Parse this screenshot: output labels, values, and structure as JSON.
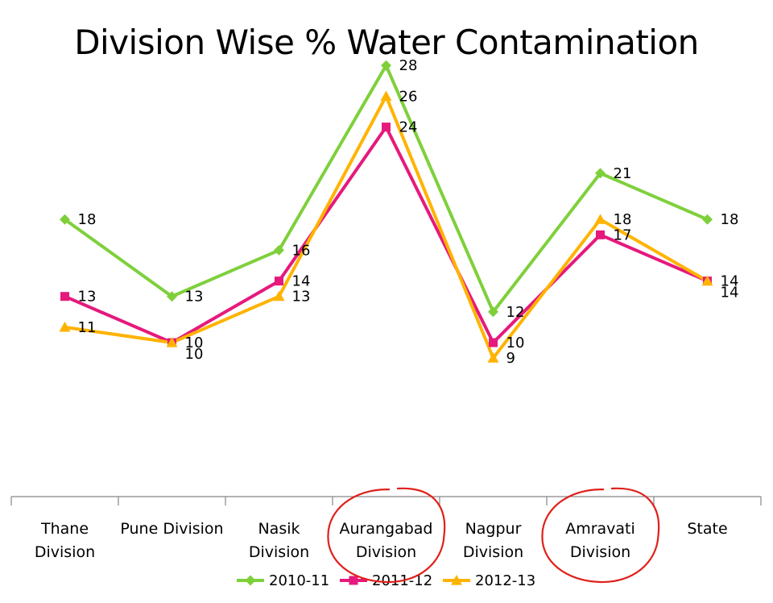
{
  "chart_data": {
    "type": "line",
    "title": "Division Wise % Water Contamination",
    "xlabel": "",
    "ylabel": "",
    "categories": [
      [
        "Thane",
        "Division"
      ],
      [
        "Pune Division"
      ],
      [
        "Nasik",
        "Division"
      ],
      [
        "Aurangabad",
        "Division"
      ],
      [
        "Nagpur",
        "Division"
      ],
      [
        "Amravati",
        "Division"
      ],
      [
        "State"
      ]
    ],
    "ylim": [
      0,
      30
    ],
    "grid": false,
    "legend": "bottom",
    "series": [
      {
        "name": "2010-11",
        "values": [
          18,
          13,
          16,
          28,
          12,
          21,
          18
        ],
        "color": "#7ED03B",
        "marker": "diamond"
      },
      {
        "name": "2011-12",
        "values": [
          13,
          10,
          14,
          24,
          10,
          17,
          14
        ],
        "color": "#E6197C",
        "marker": "square"
      },
      {
        "name": "2012-13",
        "values": [
          11,
          10,
          13,
          26,
          9,
          18,
          14
        ],
        "color": "#FFB300",
        "marker": "triangle"
      }
    ],
    "annotations": {
      "circled_categories": [
        "Aurangabad Division",
        "Amravati Division"
      ],
      "circle_color": "#E0201A"
    }
  }
}
